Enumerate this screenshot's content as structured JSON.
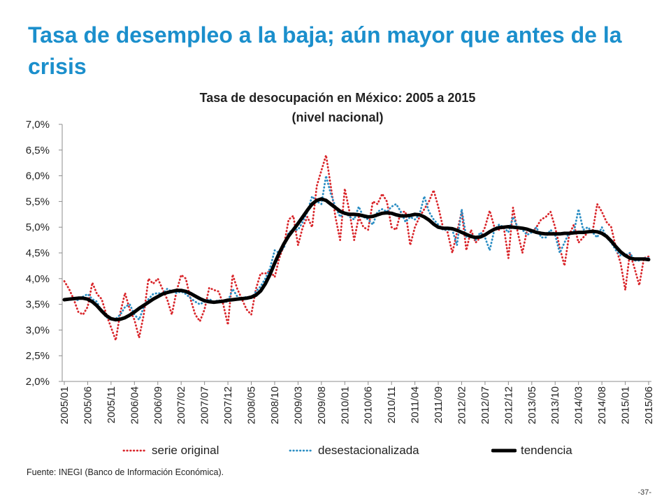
{
  "slide": {
    "title": "Tasa de desempleo a la baja; aún mayor que antes de la crisis",
    "source": "Fuente: INEGI (Banco de Información Económica).",
    "page_number": "-37-"
  },
  "colors": {
    "title": "#1b8fcc"
  },
  "chart_data": {
    "type": "line",
    "title": "Tasa de desocupación en México: 2005 a 2015",
    "subtitle": "(nivel nacional)",
    "xlabel": "",
    "ylabel": "",
    "ylim": [
      2.0,
      7.0
    ],
    "grid": false,
    "legend": "bottom",
    "yticks": [
      {
        "value": 7.0,
        "label": "7,0%"
      },
      {
        "value": 6.5,
        "label": "6,5%"
      },
      {
        "value": 6.0,
        "label": "6,0%"
      },
      {
        "value": 5.5,
        "label": "5,5%"
      },
      {
        "value": 5.0,
        "label": "5,0%"
      },
      {
        "value": 4.5,
        "label": "4,5%"
      },
      {
        "value": 4.0,
        "label": "4,0%"
      },
      {
        "value": 3.5,
        "label": "3,5%"
      },
      {
        "value": 3.0,
        "label": "3,0%"
      },
      {
        "value": 2.5,
        "label": "2,5%"
      },
      {
        "value": 2.0,
        "label": "2,0%"
      }
    ],
    "xticks": [
      "2005/01",
      "2005/06",
      "2005/11",
      "2006/04",
      "2006/09",
      "2007/02",
      "2007/07",
      "2007/12",
      "2008/05",
      "2008/10",
      "2009/03",
      "2009/08",
      "2010/01",
      "2010/06",
      "2010/11",
      "2011/04",
      "2011/09",
      "2012/02",
      "2012/07",
      "2012/12",
      "2013/05",
      "2013/10",
      "2014/03",
      "2014/08",
      "2015/01",
      "2015/06"
    ],
    "x": [
      "2005/01",
      "2005/02",
      "2005/03",
      "2005/04",
      "2005/05",
      "2005/06",
      "2005/07",
      "2005/08",
      "2005/09",
      "2005/10",
      "2005/11",
      "2005/12",
      "2006/01",
      "2006/02",
      "2006/03",
      "2006/04",
      "2006/05",
      "2006/06",
      "2006/07",
      "2006/08",
      "2006/09",
      "2006/10",
      "2006/11",
      "2006/12",
      "2007/01",
      "2007/02",
      "2007/03",
      "2007/04",
      "2007/05",
      "2007/06",
      "2007/07",
      "2007/08",
      "2007/09",
      "2007/10",
      "2007/11",
      "2007/12",
      "2008/01",
      "2008/02",
      "2008/03",
      "2008/04",
      "2008/05",
      "2008/06",
      "2008/07",
      "2008/08",
      "2008/09",
      "2008/10",
      "2008/11",
      "2008/12",
      "2009/01",
      "2009/02",
      "2009/03",
      "2009/04",
      "2009/05",
      "2009/06",
      "2009/07",
      "2009/08",
      "2009/09",
      "2009/10",
      "2009/11",
      "2009/12",
      "2010/01",
      "2010/02",
      "2010/03",
      "2010/04",
      "2010/05",
      "2010/06",
      "2010/07",
      "2010/08",
      "2010/09",
      "2010/10",
      "2010/11",
      "2010/12",
      "2011/01",
      "2011/02",
      "2011/03",
      "2011/04",
      "2011/05",
      "2011/06",
      "2011/07",
      "2011/08",
      "2011/09",
      "2011/10",
      "2011/11",
      "2011/12",
      "2012/01",
      "2012/02",
      "2012/03",
      "2012/04",
      "2012/05",
      "2012/06",
      "2012/07",
      "2012/08",
      "2012/09",
      "2012/10",
      "2012/11",
      "2012/12",
      "2013/01",
      "2013/02",
      "2013/03",
      "2013/04",
      "2013/05",
      "2013/06",
      "2013/07",
      "2013/08",
      "2013/09",
      "2013/10",
      "2013/11",
      "2013/12",
      "2014/01",
      "2014/02",
      "2014/03",
      "2014/04",
      "2014/05",
      "2014/06",
      "2014/07",
      "2014/08",
      "2014/09",
      "2014/10",
      "2014/11",
      "2014/12",
      "2015/01",
      "2015/02",
      "2015/03",
      "2015/04",
      "2015/05",
      "2015/06"
    ],
    "series": [
      {
        "name": "serie original",
        "color": "#d9262b",
        "line_style": "dotted",
        "values": [
          3.95,
          3.8,
          3.6,
          3.35,
          3.3,
          3.45,
          3.92,
          3.7,
          3.6,
          3.3,
          3.05,
          2.8,
          3.35,
          3.72,
          3.4,
          3.2,
          2.85,
          3.3,
          4.0,
          3.9,
          4.0,
          3.8,
          3.6,
          3.3,
          3.75,
          4.07,
          4.0,
          3.6,
          3.3,
          3.17,
          3.4,
          3.82,
          3.78,
          3.75,
          3.5,
          3.1,
          4.08,
          3.8,
          3.6,
          3.4,
          3.3,
          3.8,
          4.1,
          4.1,
          4.15,
          4.03,
          4.4,
          4.65,
          5.15,
          5.22,
          4.65,
          5.0,
          5.2,
          5.0,
          5.8,
          6.1,
          6.4,
          5.8,
          5.2,
          4.75,
          5.75,
          5.3,
          4.75,
          5.2,
          5.0,
          4.95,
          5.5,
          5.45,
          5.65,
          5.5,
          5.0,
          4.95,
          5.3,
          5.3,
          4.65,
          5.0,
          5.2,
          5.35,
          5.5,
          5.72,
          5.4,
          5.0,
          4.9,
          4.5,
          4.9,
          5.3,
          4.55,
          4.95,
          4.7,
          4.8,
          5.0,
          5.32,
          5.0,
          4.95,
          5.0,
          4.4,
          5.38,
          4.9,
          4.5,
          4.95,
          4.9,
          5.0,
          5.15,
          5.2,
          5.3,
          5.0,
          4.6,
          4.25,
          4.85,
          5.05,
          4.7,
          4.8,
          4.9,
          4.9,
          5.45,
          5.3,
          5.1,
          5.0,
          4.6,
          4.3,
          3.78,
          4.5,
          4.2,
          3.87,
          4.4,
          4.43
        ]
      },
      {
        "name": "desestacionalizada",
        "color": "#2b8ec4",
        "line_style": "dotted",
        "values": [
          3.6,
          3.58,
          3.6,
          3.58,
          3.65,
          3.7,
          3.6,
          3.55,
          3.35,
          3.25,
          3.2,
          3.22,
          3.3,
          3.45,
          3.5,
          3.3,
          3.2,
          3.45,
          3.6,
          3.7,
          3.72,
          3.7,
          3.8,
          3.75,
          3.72,
          3.75,
          3.7,
          3.62,
          3.55,
          3.5,
          3.55,
          3.6,
          3.55,
          3.58,
          3.55,
          3.55,
          3.8,
          3.65,
          3.6,
          3.65,
          3.62,
          3.75,
          3.85,
          4.0,
          4.2,
          4.55,
          4.5,
          4.6,
          4.9,
          4.95,
          4.95,
          5.1,
          5.3,
          5.6,
          5.5,
          5.45,
          6.0,
          5.65,
          5.4,
          5.2,
          5.3,
          5.2,
          5.15,
          5.4,
          5.2,
          5.15,
          5.05,
          5.3,
          5.35,
          5.3,
          5.4,
          5.45,
          5.3,
          5.1,
          5.2,
          5.15,
          5.25,
          5.6,
          5.3,
          5.15,
          5.05,
          4.95,
          4.95,
          4.95,
          4.65,
          5.35,
          4.8,
          4.85,
          4.75,
          4.9,
          4.8,
          4.55,
          4.95,
          5.05,
          5.0,
          4.9,
          5.2,
          5.0,
          4.95,
          4.85,
          4.9,
          5.0,
          4.8,
          4.8,
          4.95,
          4.85,
          4.5,
          4.7,
          4.9,
          4.9,
          5.35,
          4.95,
          5.0,
          4.9,
          4.8,
          5.0,
          4.8,
          4.7,
          4.55,
          4.45,
          4.45,
          4.5,
          4.35,
          4.35,
          4.4,
          4.4
        ]
      },
      {
        "name": "tendencia",
        "color": "#000000",
        "line_style": "solid",
        "values": [
          3.59,
          3.6,
          3.61,
          3.62,
          3.62,
          3.6,
          3.55,
          3.47,
          3.37,
          3.28,
          3.22,
          3.2,
          3.21,
          3.24,
          3.29,
          3.35,
          3.42,
          3.48,
          3.54,
          3.6,
          3.65,
          3.7,
          3.73,
          3.75,
          3.77,
          3.77,
          3.75,
          3.71,
          3.66,
          3.61,
          3.57,
          3.55,
          3.54,
          3.55,
          3.56,
          3.58,
          3.59,
          3.6,
          3.61,
          3.62,
          3.64,
          3.68,
          3.76,
          3.9,
          4.08,
          4.3,
          4.5,
          4.68,
          4.83,
          4.95,
          5.07,
          5.2,
          5.33,
          5.45,
          5.52,
          5.55,
          5.52,
          5.45,
          5.38,
          5.31,
          5.27,
          5.25,
          5.25,
          5.24,
          5.22,
          5.2,
          5.21,
          5.24,
          5.27,
          5.28,
          5.27,
          5.24,
          5.22,
          5.22,
          5.23,
          5.25,
          5.24,
          5.2,
          5.14,
          5.06,
          5.0,
          4.98,
          4.98,
          4.97,
          4.94,
          4.9,
          4.86,
          4.82,
          4.8,
          4.81,
          4.85,
          4.91,
          4.96,
          4.99,
          5.0,
          5.01,
          5.0,
          4.99,
          4.98,
          4.96,
          4.93,
          4.9,
          4.88,
          4.87,
          4.87,
          4.87,
          4.87,
          4.88,
          4.88,
          4.89,
          4.9,
          4.9,
          4.91,
          4.92,
          4.91,
          4.88,
          4.82,
          4.73,
          4.62,
          4.52,
          4.45,
          4.4,
          4.38,
          4.38,
          4.38,
          4.37
        ]
      }
    ]
  }
}
